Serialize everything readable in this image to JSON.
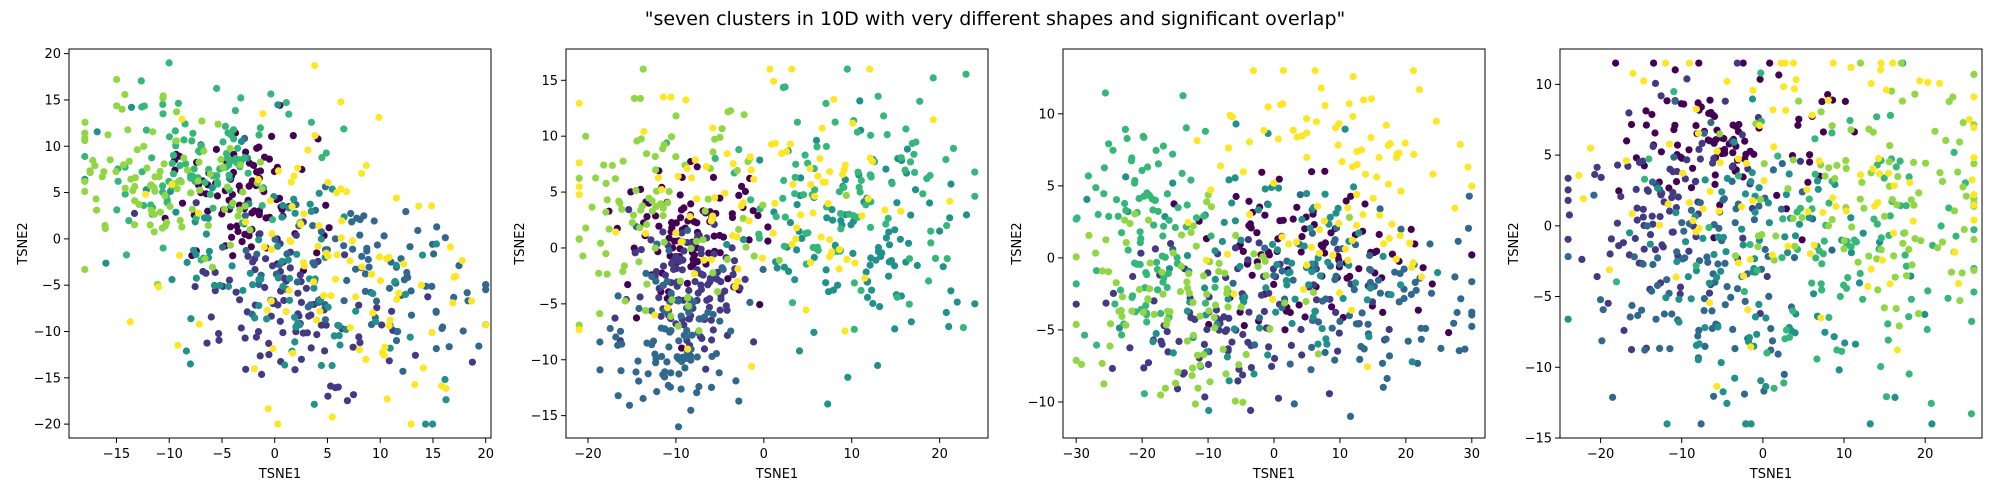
{
  "title": "\"seven clusters in 10D with very different shapes and significant overlap\"",
  "palette": [
    "#440154",
    "#443983",
    "#31688e",
    "#21918c",
    "#35b779",
    "#90d743",
    "#fde725"
  ],
  "chart_data": [
    {
      "type": "scatter",
      "xlabel": "TSNE1",
      "ylabel": "TSNE2",
      "xlim": [
        -19.5,
        20.5
      ],
      "ylim": [
        -21.5,
        20.5
      ],
      "xticks": [
        -15,
        -10,
        -5,
        0,
        5,
        10,
        15,
        20
      ],
      "yticks": [
        -20,
        -15,
        -10,
        -5,
        0,
        5,
        10,
        15,
        20
      ],
      "clusters": [
        {
          "cx": -3,
          "cy": 4,
          "sx": 3.5,
          "sy": 3.5,
          "rot": 0
        },
        {
          "cx": 3,
          "cy": -8,
          "sx": 6,
          "sy": 4,
          "rot": -35
        },
        {
          "cx": 8,
          "cy": -3,
          "sx": 6,
          "sy": 4,
          "rot": -30
        },
        {
          "cx": 0,
          "cy": -3,
          "sx": 9,
          "sy": 5,
          "rot": -40
        },
        {
          "cx": -8,
          "cy": 8,
          "sx": 5,
          "sy": 4,
          "rot": 0
        },
        {
          "cx": -10,
          "cy": 6,
          "sx": 5,
          "sy": 4,
          "rot": -20
        },
        {
          "cx": 3,
          "cy": -3,
          "sx": 9,
          "sy": 6,
          "rot": -40
        }
      ],
      "bounds": [
        [
          -18,
          20
        ],
        [
          -20,
          19
        ]
      ]
    },
    {
      "type": "scatter",
      "xlabel": "TSNE1",
      "ylabel": "TSNE2",
      "xlim": [
        -22.5,
        25.5
      ],
      "ylim": [
        -17,
        17.8
      ],
      "xticks": [
        -20,
        -10,
        0,
        10,
        20
      ],
      "yticks": [
        -15,
        -10,
        -5,
        0,
        5,
        10,
        15
      ],
      "clusters": [
        {
          "cx": -8,
          "cy": 1,
          "sx": 4,
          "sy": 3,
          "rot": 0
        },
        {
          "cx": -8,
          "cy": -3,
          "sx": 3.5,
          "sy": 3,
          "rot": 0
        },
        {
          "cx": -10,
          "cy": -8,
          "sx": 4,
          "sy": 3.5,
          "rot": 0
        },
        {
          "cx": 12,
          "cy": 0,
          "sx": 6,
          "sy": 5,
          "rot": 0
        },
        {
          "cx": 10,
          "cy": 5,
          "sx": 7,
          "sy": 5,
          "rot": 0
        },
        {
          "cx": -12,
          "cy": 3,
          "sx": 6,
          "sy": 5,
          "rot": 0
        },
        {
          "cx": 0,
          "cy": 3,
          "sx": 10,
          "sy": 6,
          "rot": 0
        }
      ],
      "bounds": [
        [
          -21,
          24
        ],
        [
          -16,
          16
        ]
      ]
    },
    {
      "type": "scatter",
      "xlabel": "TSNE1",
      "ylabel": "TSNE2",
      "xlim": [
        -32,
        32
      ],
      "ylim": [
        -12.5,
        14.5
      ],
      "xticks": [
        -30,
        -20,
        -10,
        0,
        10,
        20,
        30
      ],
      "yticks": [
        -10,
        -5,
        0,
        5,
        10
      ],
      "clusters": [
        {
          "cx": 5,
          "cy": 0,
          "sx": 9,
          "sy": 2.5,
          "rot": 0
        },
        {
          "cx": -5,
          "cy": -4,
          "sx": 10,
          "sy": 3,
          "rot": 0
        },
        {
          "cx": 15,
          "cy": -3,
          "sx": 10,
          "sy": 3,
          "rot": 0
        },
        {
          "cx": 0,
          "cy": -1,
          "sx": 12,
          "sy": 4,
          "rot": 0
        },
        {
          "cx": -20,
          "cy": 2,
          "sx": 5,
          "sy": 4,
          "rot": 0
        },
        {
          "cx": -15,
          "cy": -2,
          "sx": 8,
          "sy": 4,
          "rot": 0
        },
        {
          "cx": 8,
          "cy": 5,
          "sx": 10,
          "sy": 5,
          "rot": 0
        }
      ],
      "bounds": [
        [
          -30,
          30
        ],
        [
          -11,
          13
        ]
      ]
    },
    {
      "type": "scatter",
      "xlabel": "TSNE1",
      "ylabel": "TSNE2",
      "xlim": [
        -25,
        27
      ],
      "ylim": [
        -15,
        12.5
      ],
      "xticks": [
        -20,
        -10,
        0,
        10,
        20
      ],
      "yticks": [
        -15,
        -10,
        -5,
        0,
        5,
        10
      ],
      "clusters": [
        {
          "cx": -4,
          "cy": 6,
          "sx": 6,
          "sy": 2.5,
          "rot": 0
        },
        {
          "cx": -12,
          "cy": 1,
          "sx": 6,
          "sy": 4,
          "rot": 0
        },
        {
          "cx": -8,
          "cy": -4,
          "sx": 7,
          "sy": 5,
          "rot": 0
        },
        {
          "cx": 0,
          "cy": -3,
          "sx": 9,
          "sy": 5,
          "rot": 0
        },
        {
          "cx": 10,
          "cy": -2,
          "sx": 10,
          "sy": 5,
          "rot": 0
        },
        {
          "cx": 14,
          "cy": 2,
          "sx": 8,
          "sy": 4,
          "rot": 0
        },
        {
          "cx": 5,
          "cy": 4,
          "sx": 12,
          "sy": 6,
          "rot": 0
        }
      ],
      "bounds": [
        [
          -24,
          26
        ],
        [
          -14,
          11.5
        ]
      ]
    }
  ]
}
